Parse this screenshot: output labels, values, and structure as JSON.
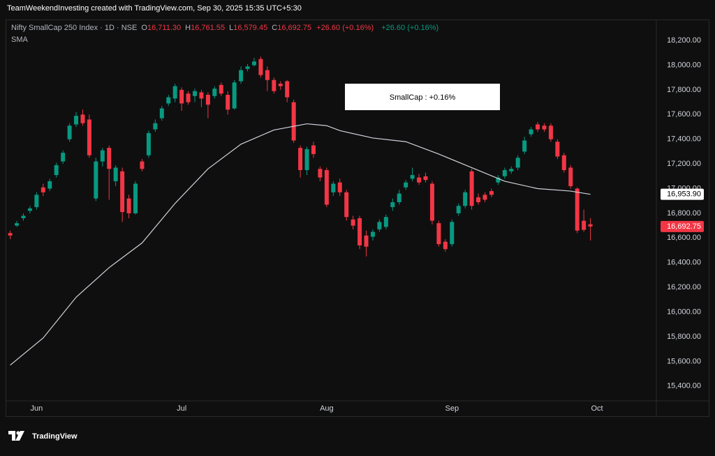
{
  "header": {
    "text": "TeamWeekendInvesting created with TradingView.com, Sep 30, 2025 15:35 UTC+5:30"
  },
  "footer": {
    "brand": "TradingView"
  },
  "chart_data": {
    "type": "candlestick",
    "legend": {
      "symbol": "Nifty SmallCap 250 Index · 1D · NSE",
      "open_key": "O",
      "open": "16,711.30",
      "high_key": "H",
      "high": "16,761.55",
      "low_key": "L",
      "low": "16,579.45",
      "close_key": "C",
      "close": "16,692.75",
      "change": "+26.60 (+0.16%)",
      "indicator_change": "+26.60 (+0.16%)"
    },
    "annotation": "SmallCap : +0.16%",
    "up_color": "#089981",
    "down_color": "#f23645",
    "candles": {
      "open": [
        16640,
        16700,
        16760,
        16820,
        16850,
        17010,
        17000,
        17110,
        17220,
        17400,
        17520,
        17600,
        17560,
        16920,
        17220,
        17330,
        17060,
        17140,
        16920,
        16800,
        17220,
        17270,
        17480,
        17570,
        17690,
        17730,
        17800,
        17770,
        17750,
        17780,
        17760,
        17750,
        17840,
        17760,
        17650,
        17870,
        17970,
        18000,
        18050,
        17960,
        17880,
        17850,
        17870,
        17700,
        17330,
        17150,
        17350,
        17160,
        17150,
        16970,
        17050,
        16970,
        16750,
        16760,
        16620,
        16610,
        16670,
        16690,
        16850,
        16890,
        17010,
        17080,
        17090,
        17100,
        17040,
        16720,
        16570,
        16550,
        16800,
        16860,
        17140,
        16930,
        16950,
        16980,
        17050,
        17100,
        17140,
        17170,
        17300,
        17440,
        17520,
        17510,
        17510,
        17380,
        17270,
        17170,
        17000,
        16740,
        16711.3
      ],
      "high": [
        16660,
        16740,
        16800,
        16860,
        16970,
        17040,
        17080,
        17210,
        17310,
        17530,
        17620,
        17640,
        17600,
        17250,
        17330,
        17350,
        17190,
        17170,
        16950,
        17060,
        17240,
        17470,
        17560,
        17670,
        17760,
        17850,
        17820,
        17790,
        17810,
        17800,
        17780,
        17830,
        17860,
        17790,
        17880,
        17990,
        18010,
        18060,
        18070,
        17990,
        17900,
        17870,
        17880,
        17720,
        17350,
        17340,
        17380,
        17180,
        17170,
        17060,
        17080,
        16990,
        16780,
        16780,
        16660,
        16670,
        16750,
        16790,
        16920,
        16990,
        17070,
        17170,
        17120,
        17130,
        17060,
        16740,
        16590,
        16750,
        16880,
        16990,
        17160,
        16960,
        16970,
        17000,
        17110,
        17170,
        17180,
        17270,
        17420,
        17500,
        17540,
        17530,
        17530,
        17400,
        17290,
        17190,
        17010,
        16830,
        16761.55
      ],
      "low": [
        16590,
        16690,
        16740,
        16800,
        16830,
        16940,
        16980,
        17090,
        17200,
        17380,
        17500,
        17510,
        17250,
        16900,
        17180,
        16910,
        17020,
        16730,
        16760,
        16790,
        17140,
        17250,
        17460,
        17550,
        17670,
        17700,
        17630,
        17680,
        17700,
        17660,
        17570,
        17730,
        17750,
        17600,
        17640,
        17850,
        17950,
        17990,
        17900,
        17790,
        17770,
        17800,
        17700,
        17370,
        17090,
        17110,
        17250,
        17060,
        16850,
        16940,
        16940,
        16740,
        16670,
        16510,
        16450,
        16580,
        16650,
        16670,
        16820,
        16870,
        16990,
        17060,
        17030,
        17050,
        16710,
        16530,
        16490,
        16530,
        16780,
        16840,
        16830,
        16870,
        16890,
        16930,
        17030,
        17080,
        17120,
        17150,
        17280,
        17420,
        17460,
        17460,
        17380,
        17240,
        17130,
        17000,
        16640,
        16650,
        16579.45
      ],
      "close": [
        16620,
        16720,
        16780,
        16840,
        16950,
        16970,
        17060,
        17190,
        17290,
        17510,
        17590,
        17530,
        17270,
        17220,
        17310,
        17160,
        17170,
        16810,
        16800,
        17040,
        17160,
        17450,
        17530,
        17650,
        17740,
        17830,
        17690,
        17700,
        17790,
        17730,
        17680,
        17810,
        17770,
        17640,
        17860,
        17960,
        17990,
        18030,
        17920,
        17880,
        17790,
        17830,
        17740,
        17390,
        17150,
        17320,
        17280,
        17090,
        16870,
        17040,
        16970,
        16770,
        16700,
        16540,
        16530,
        16650,
        16730,
        16770,
        16890,
        16960,
        17050,
        17110,
        17050,
        17070,
        16740,
        16550,
        16510,
        16730,
        16860,
        16970,
        16860,
        16890,
        16910,
        16950,
        17090,
        17150,
        17160,
        17250,
        17390,
        17480,
        17480,
        17480,
        17400,
        17260,
        17150,
        17020,
        16660,
        16666.15,
        16692.75
      ],
      "last_label": "16,692.75"
    },
    "sma": {
      "name": "SMA",
      "color": "#d1d4dc",
      "x": [
        0,
        5,
        10,
        15,
        20,
        25,
        30,
        35,
        40,
        45,
        48,
        50,
        55,
        60,
        65,
        70,
        75,
        80,
        85,
        88
      ],
      "values": [
        15570,
        15790,
        16120,
        16360,
        16560,
        16880,
        17160,
        17360,
        17475,
        17525,
        17510,
        17470,
        17410,
        17380,
        17280,
        17170,
        17060,
        17000,
        16980,
        16953.9
      ],
      "last_label": "16,953.90"
    },
    "xlim": [
      -0.7,
      98
    ],
    "xticks": [
      {
        "value": 4,
        "label": "Jun"
      },
      {
        "value": 26,
        "label": "Jul"
      },
      {
        "value": 48,
        "label": "Aug"
      },
      {
        "value": 67,
        "label": "Sep"
      },
      {
        "value": 89,
        "label": "Oct"
      }
    ],
    "ylim": [
      15280,
      18370
    ],
    "yticks": [
      {
        "value": 15400,
        "label": "15,400.00"
      },
      {
        "value": 15600,
        "label": "15,600.00"
      },
      {
        "value": 15800,
        "label": "15,800.00"
      },
      {
        "value": 16000,
        "label": "16,000.00"
      },
      {
        "value": 16200,
        "label": "16,200.00"
      },
      {
        "value": 16400,
        "label": "16,400.00"
      },
      {
        "value": 16600,
        "label": "16,600.00"
      },
      {
        "value": 16800,
        "label": "16,800.00"
      },
      {
        "value": 17000,
        "label": "17,000.00"
      },
      {
        "value": 17200,
        "label": "17,200.00"
      },
      {
        "value": 17400,
        "label": "17,400.00"
      },
      {
        "value": 17600,
        "label": "17,600.00"
      },
      {
        "value": 17800,
        "label": "17,800.00"
      },
      {
        "value": 18000,
        "label": "18,000.00"
      },
      {
        "value": 18200,
        "label": "18,200.00"
      }
    ],
    "grid": false
  }
}
